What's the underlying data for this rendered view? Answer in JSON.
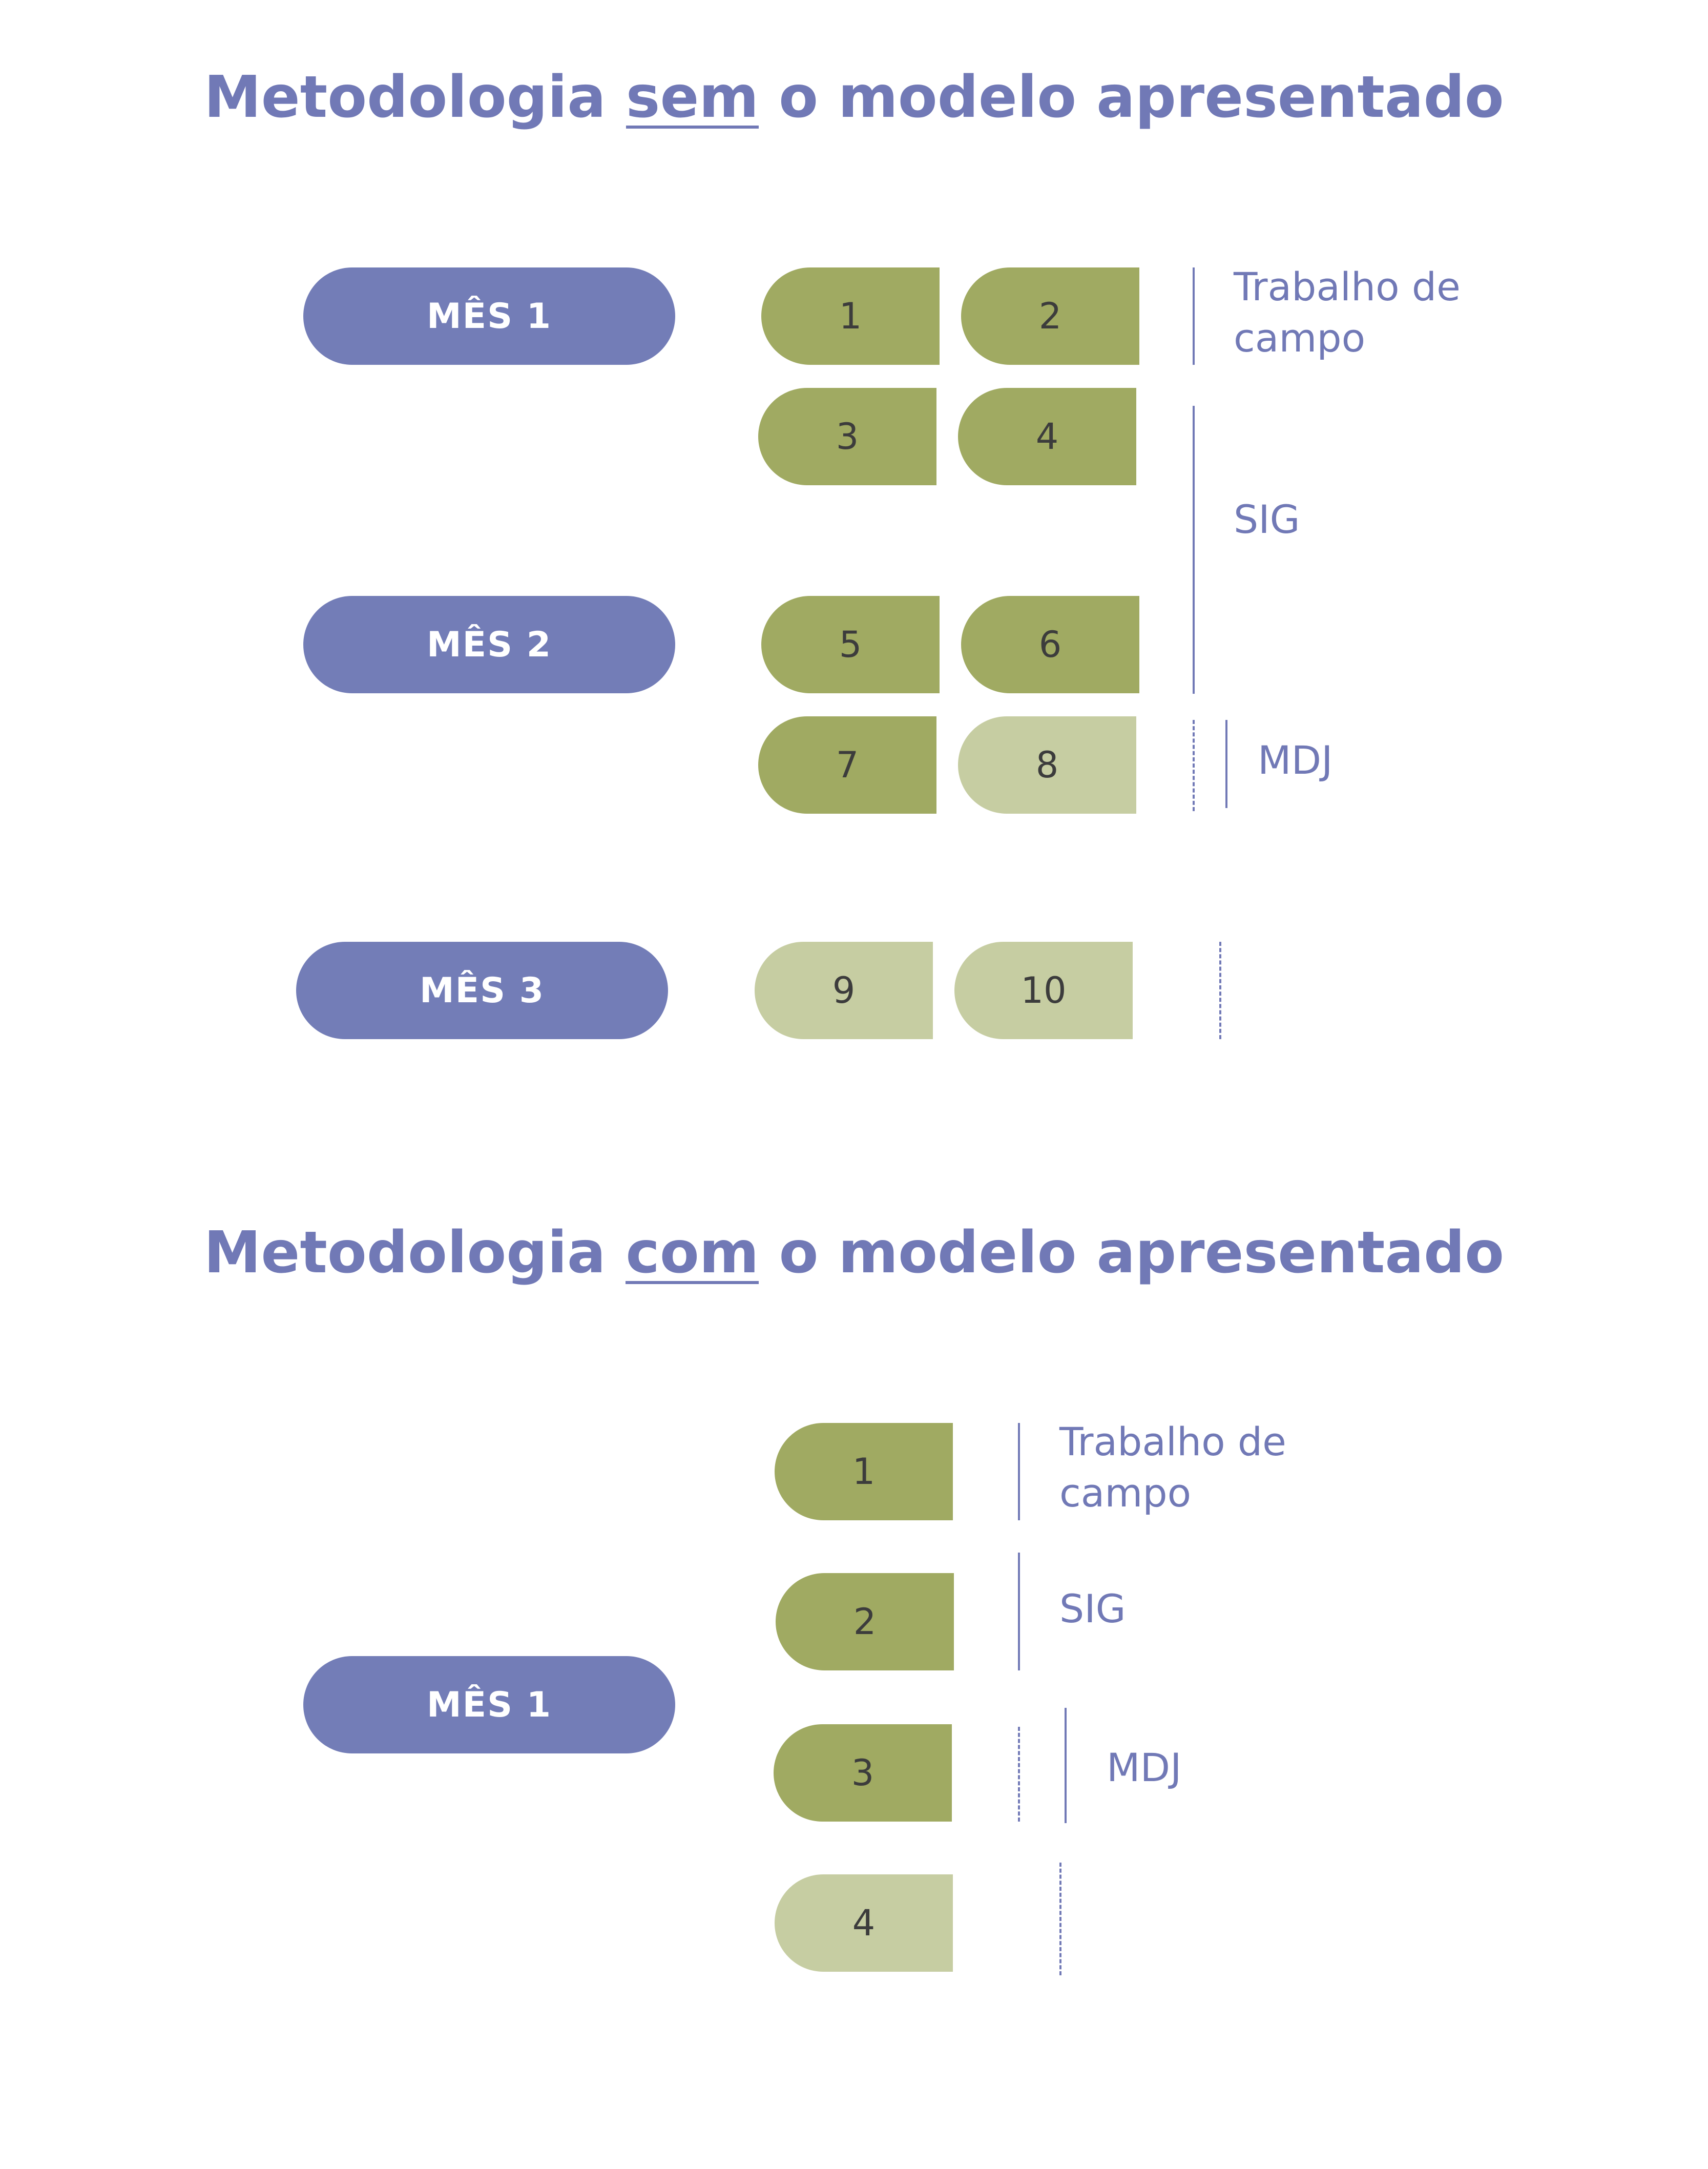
{
  "sections": [
    {
      "title": {
        "prefix": "Metodologia",
        "highlight": "sem",
        "suffix": "o modelo apresentado"
      },
      "months": [
        "MÊS 1",
        "MÊS 2",
        "MÊS 3"
      ],
      "blocks": [
        "1",
        "2",
        "3",
        "4",
        "5",
        "6",
        "7",
        "8",
        "9",
        "10"
      ],
      "labels": {
        "trabalho": "Trabalho de\ncampo",
        "sig": "SIG",
        "mdj": "MDJ"
      }
    },
    {
      "title": {
        "prefix": "Metodologia",
        "highlight": "com",
        "suffix": "o modelo apresentado"
      },
      "months": [
        "MÊS 1"
      ],
      "blocks": [
        "1",
        "2",
        "3",
        "4"
      ],
      "labels": {
        "trabalho": "Trabalho de\ncampo",
        "sig": "SIG",
        "mdj": "MDJ"
      }
    }
  ],
  "colors": {
    "accent": "#7179b6",
    "pill": "#737db7",
    "block_dark": "#a0aa62",
    "block_light": "#c6cda2"
  }
}
